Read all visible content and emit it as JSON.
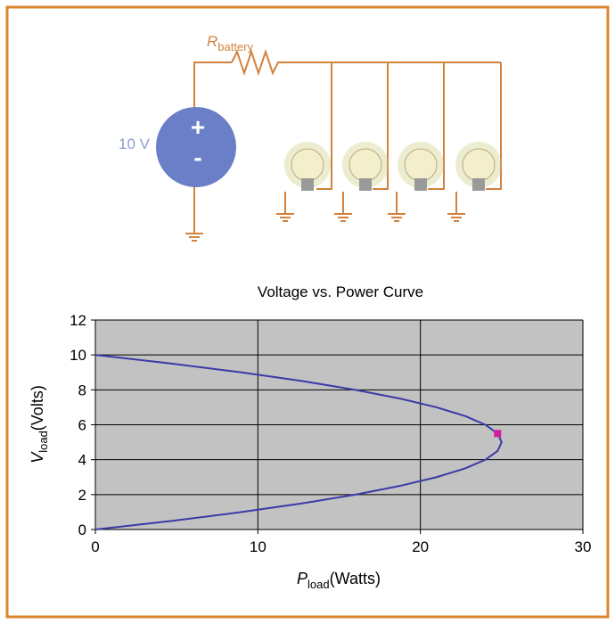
{
  "diagram": {
    "resistor_label": [
      "R",
      "battery"
    ],
    "source_label": "10 V",
    "plus": "+",
    "minus": "-"
  },
  "chart_data": {
    "type": "line",
    "title": "Voltage vs. Power Curve",
    "x_label": [
      "P",
      "load",
      "(Watts)"
    ],
    "y_label": [
      "V",
      "load",
      "(Volts)"
    ],
    "xlim": [
      0,
      30
    ],
    "xticks": [
      0,
      10,
      20,
      30
    ],
    "ylim": [
      0,
      12
    ],
    "yticks": [
      0,
      2,
      4,
      6,
      8,
      10,
      12
    ],
    "grid": true,
    "series": [
      {
        "color": "#3a3aa8",
        "x": [
          0,
          4.75,
          9,
          12.75,
          16,
          18.75,
          21,
          22.75,
          24,
          24.75,
          25,
          24.75,
          24,
          22.75,
          21,
          18.75,
          16,
          12.75,
          9,
          4.75,
          0
        ],
        "values": [
          0,
          0.5,
          1,
          1.5,
          2,
          2.5,
          3,
          3.5,
          4,
          4.5,
          5,
          5.5,
          6,
          6.5,
          7,
          7.5,
          8,
          8.5,
          9,
          9.5,
          10
        ]
      },
      {
        "color": "#d0209a",
        "marker": "square",
        "x": [
          24.75
        ],
        "values": [
          5.5
        ]
      }
    ]
  }
}
